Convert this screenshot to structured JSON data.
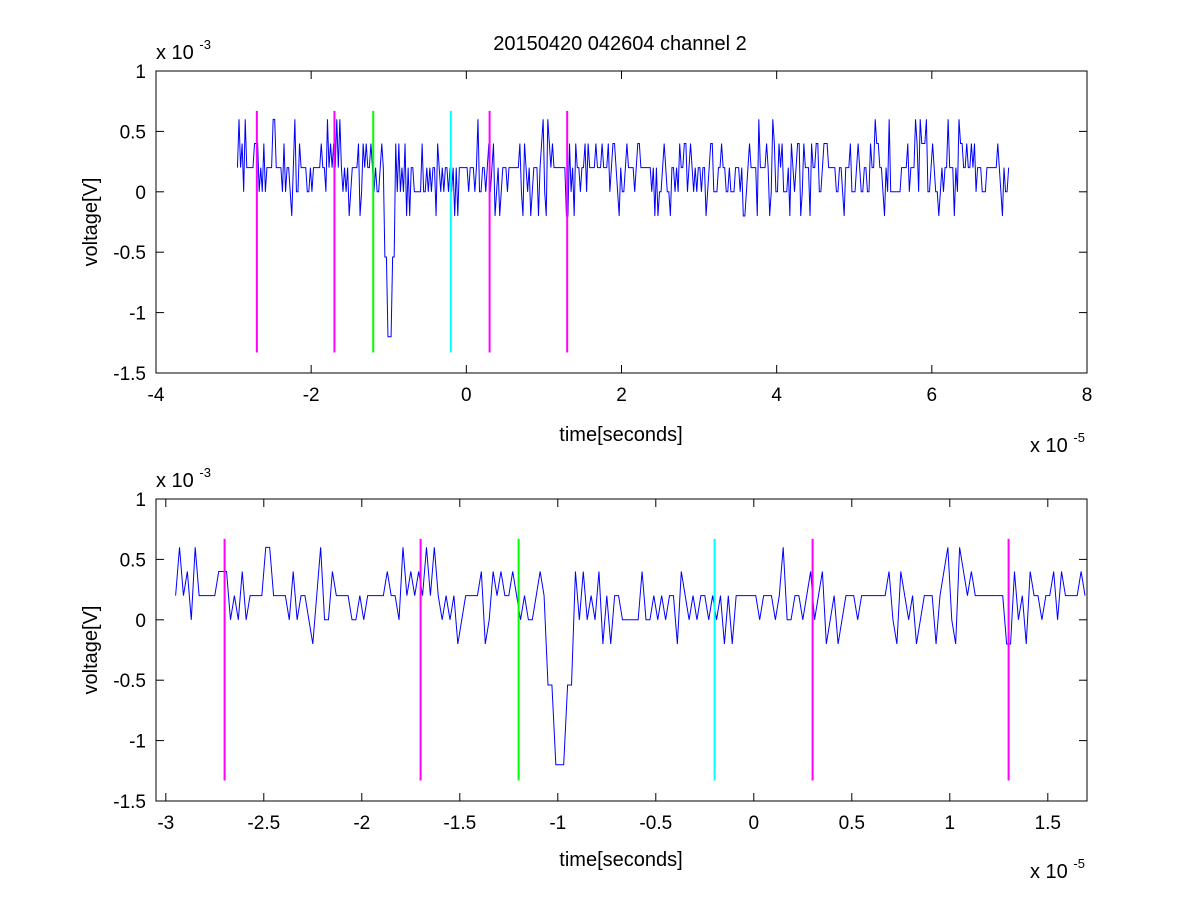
{
  "chart_data": [
    {
      "type": "line",
      "title": "20150420 042604 channel 2",
      "xlabel": "time[seconds]",
      "ylabel": "voltage[V]",
      "x_multiplier": "x 10",
      "x_multiplier_exp": "-5",
      "y_multiplier": "x 10",
      "y_multiplier_exp": "-3",
      "xlim": [
        -4,
        8
      ],
      "ylim": [
        -1.5,
        1
      ],
      "x_ticks": [
        -4,
        -2,
        0,
        2,
        4,
        6,
        8
      ],
      "x_tick_labels": [
        "-4",
        "-2",
        "0",
        "2",
        "4",
        "6",
        "8"
      ],
      "y_ticks": [
        -1.5,
        -1,
        -0.5,
        0,
        0.5,
        1
      ],
      "y_tick_labels": [
        "-1.5",
        "-1",
        "-0.5",
        "0",
        "0.5",
        "1"
      ],
      "grid": false,
      "signal": {
        "color": "#0000ff",
        "x_range": [
          -2.95,
          7.0
        ],
        "levels": [
          -0.2,
          0,
          0.2,
          0.4,
          0.6
        ],
        "spikes": [
          {
            "x": -0.98,
            "y": -1.2
          }
        ]
      },
      "markers": [
        {
          "x": -2.7,
          "color": "#ff00ff",
          "ymin": -1.33,
          "ymax": 0.67
        },
        {
          "x": -1.7,
          "color": "#ff00ff",
          "ymin": -1.33,
          "ymax": 0.67
        },
        {
          "x": -1.2,
          "color": "#00ff00",
          "ymin": -1.33,
          "ymax": 0.67
        },
        {
          "x": -0.2,
          "color": "#00ffff",
          "ymin": -1.33,
          "ymax": 0.67
        },
        {
          "x": 0.3,
          "color": "#ff00ff",
          "ymin": -1.33,
          "ymax": 0.67
        },
        {
          "x": 1.3,
          "color": "#ff00ff",
          "ymin": -1.33,
          "ymax": 0.67
        }
      ]
    },
    {
      "type": "line",
      "title": "",
      "xlabel": "time[seconds]",
      "ylabel": "voltage[V]",
      "x_multiplier": "x 10",
      "x_multiplier_exp": "-5",
      "y_multiplier": "x 10",
      "y_multiplier_exp": "-3",
      "xlim": [
        -3.05,
        1.7
      ],
      "ylim": [
        -1.5,
        1
      ],
      "x_ticks": [
        -3,
        -2.5,
        -2,
        -1.5,
        -1,
        -0.5,
        0,
        0.5,
        1,
        1.5
      ],
      "x_tick_labels": [
        "-3",
        "-2.5",
        "-2",
        "-1.5",
        "-1",
        "-0.5",
        "0",
        "0.5",
        "1",
        "1.5"
      ],
      "y_ticks": [
        -1.5,
        -1,
        -0.5,
        0,
        0.5,
        1
      ],
      "y_tick_labels": [
        "-1.5",
        "-1",
        "-0.5",
        "0",
        "0.5",
        "1"
      ],
      "grid": false,
      "signal": {
        "color": "#0000ff",
        "x_range": [
          -2.95,
          1.7
        ],
        "levels": [
          -0.2,
          0,
          0.2,
          0.4,
          0.6
        ],
        "spikes": [
          {
            "x": -0.98,
            "y": -1.2
          }
        ]
      },
      "markers": [
        {
          "x": -2.7,
          "color": "#ff00ff",
          "ymin": -1.33,
          "ymax": 0.67
        },
        {
          "x": -1.7,
          "color": "#ff00ff",
          "ymin": -1.33,
          "ymax": 0.67
        },
        {
          "x": -1.2,
          "color": "#00ff00",
          "ymin": -1.33,
          "ymax": 0.67
        },
        {
          "x": -0.2,
          "color": "#00ffff",
          "ymin": -1.33,
          "ymax": 0.67
        },
        {
          "x": 0.3,
          "color": "#ff00ff",
          "ymin": -1.33,
          "ymax": 0.67
        },
        {
          "x": 1.3,
          "color": "#ff00ff",
          "ymin": -1.33,
          "ymax": 0.67
        }
      ]
    }
  ]
}
